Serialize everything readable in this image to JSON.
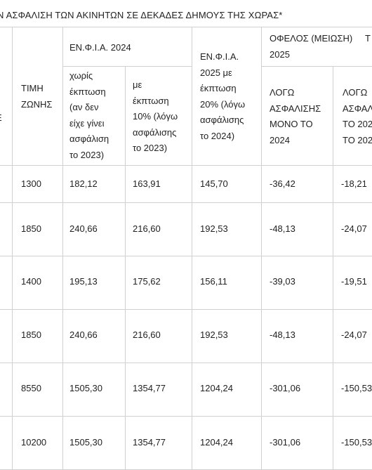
{
  "title": "Ν ΑΣΦΑΛΙΣΗ ΤΩΝ ΑΚΙΝΗΤΩΝ ΣΕ ΔΕΚΑΔΕΣ ΔΗΜΟΥΣ ΤΗΣ ΧΩΡΑΣ*",
  "headers": {
    "col0_glyph": "Ε",
    "timi_zonis": "ΤΙΜΗ\nΖΩΝΗΣ",
    "enfia_2024": "ΕΝ.Φ.Ι.Α. 2024",
    "enfia_2024_no_discount": "χωρίς\nέκπτωση\n(αν δεν\nείχε γίνει\nασφάλιση\nτο 2023)",
    "enfia_2024_with_discount": "με\nέκπτωση\n10% (λόγω\nασφάλισης\nτο 2023)",
    "enfia_2025": "ΕΝ.Φ.Ι.Α.\n2025 με\nέκπτωση\n20% (λόγω\nασφάλισης\nτο 2024)",
    "ofelos": "ΟΦΕΛΟΣ (ΜΕΙΩΣΗ)     Τ\n2025",
    "logo_2024": "ΛΟΓΩ\nΑΣΦΑΛΙΣΗΣ\nΜΟΝΟ ΤΟ\n2024",
    "logo_partial": "ΛΟΓΩ\nΑΣΦΑΛ\nΤΟ 202\nΤΟ 202"
  },
  "rows": [
    {
      "zone": "1300",
      "no_discount": "182,12",
      "with_discount": "163,91",
      "enfia_2025": "145,70",
      "benefit_2024": "-36,42",
      "benefit_other": "-18,21"
    },
    {
      "zone": "1850",
      "no_discount": "240,66",
      "with_discount": "216,60",
      "enfia_2025": "192,53",
      "benefit_2024": "-48,13",
      "benefit_other": "-24,07"
    },
    {
      "zone": "1400",
      "no_discount": "195,13",
      "with_discount": "175,62",
      "enfia_2025": "156,11",
      "benefit_2024": "-39,03",
      "benefit_other": "-19,51"
    },
    {
      "zone": "1850",
      "no_discount": "240,66",
      "with_discount": "216,60",
      "enfia_2025": "192,53",
      "benefit_2024": "-48,13",
      "benefit_other": "-24,07"
    },
    {
      "zone": "8550",
      "no_discount": "1505,30",
      "with_discount": "1354,77",
      "enfia_2025": "1204,24",
      "benefit_2024": "-301,06",
      "benefit_other": "-150,53"
    },
    {
      "zone": "10200",
      "no_discount": "1505,30",
      "with_discount": "1354,77",
      "enfia_2025": "1204,24",
      "benefit_2024": "-301,06",
      "benefit_other": "-150,53"
    }
  ]
}
